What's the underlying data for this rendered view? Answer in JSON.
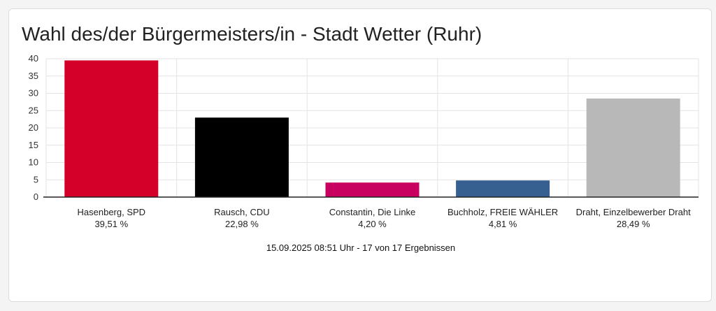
{
  "colors": {
    "background": "#f4f4f4",
    "card": "#ffffff",
    "grid": "#e3e3e3",
    "axis": "#222222"
  },
  "chart_data": {
    "type": "bar",
    "title": "Wahl des/der Bürgermeisters/in - Stadt Wetter (Ruhr)",
    "ylim": [
      0,
      40
    ],
    "yticks": [
      0,
      5,
      10,
      15,
      20,
      25,
      30,
      35,
      40
    ],
    "grid": true,
    "categories": [
      "Hasenberg, SPD",
      "Rausch, CDU",
      "Constantin, Die Linke",
      "Buchholz, FREIE WÄHLER",
      "Draht, Einzelbewerber Draht"
    ],
    "values": [
      39.51,
      22.98,
      4.2,
      4.81,
      28.49
    ],
    "value_labels": [
      "39,51 %",
      "22,98 %",
      "4,20 %",
      "4,81 %",
      "28,49 %"
    ],
    "colors": [
      "#d4002a",
      "#000000",
      "#c8005f",
      "#35608f",
      "#b8b8b8"
    ],
    "footnote": "15.09.2025 08:51 Uhr - 17 von 17 Ergebnissen"
  }
}
